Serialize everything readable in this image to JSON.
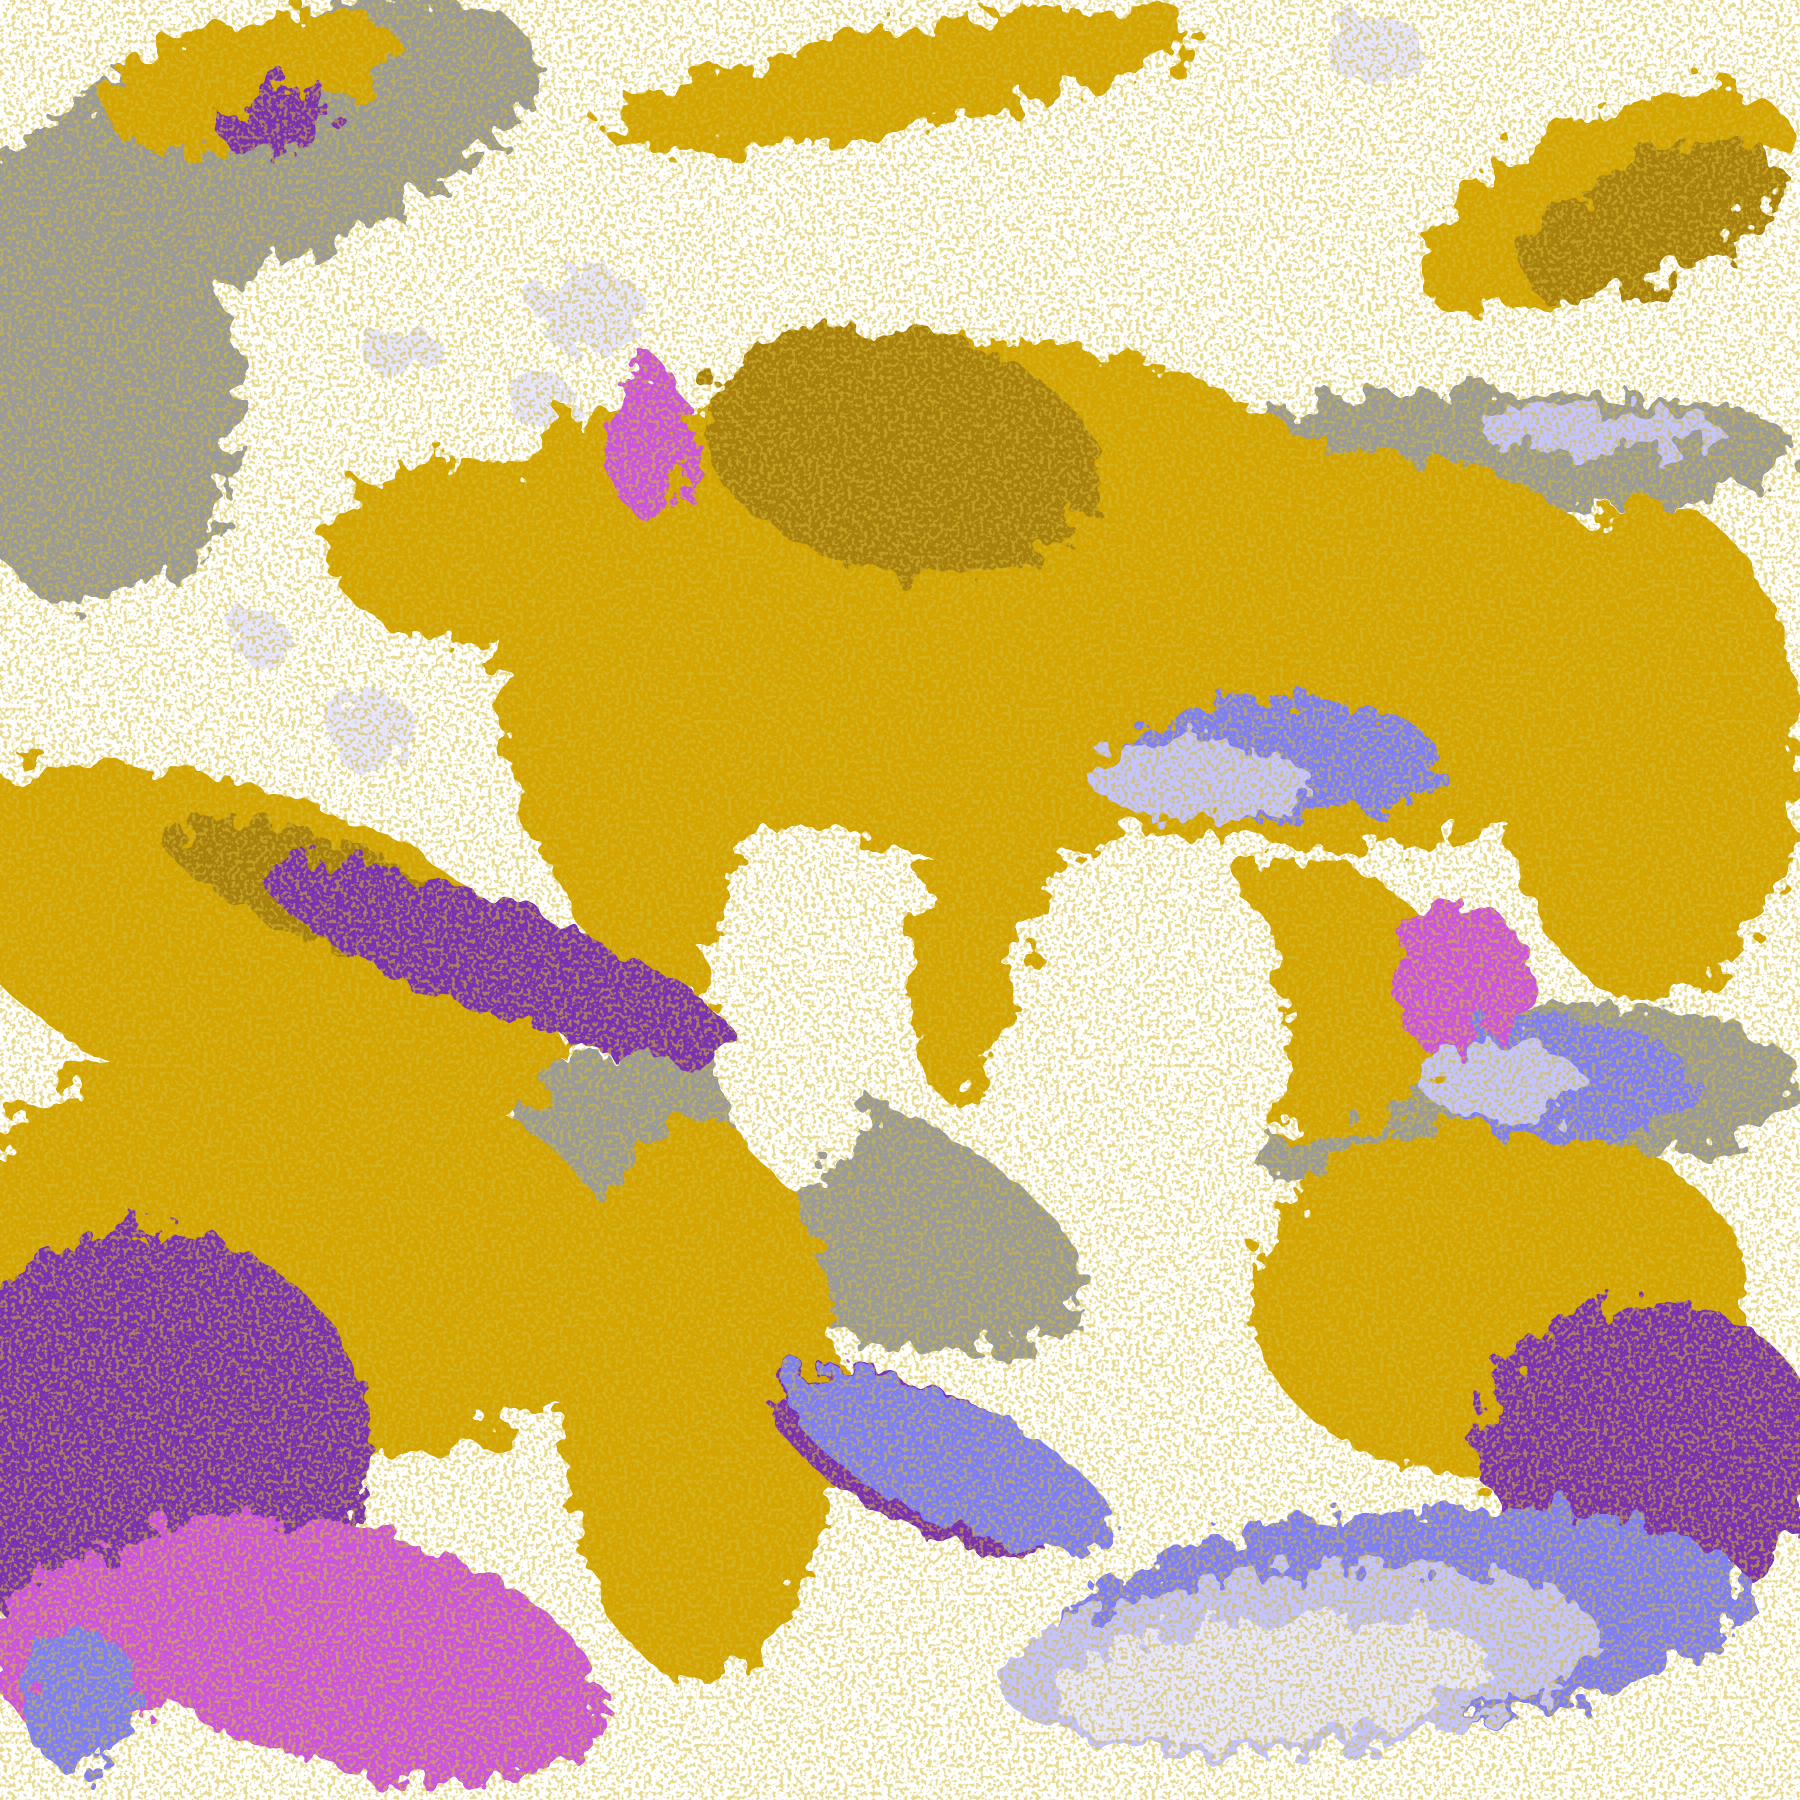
{
  "map": {
    "type": "false-color satellite cloud imagery",
    "palette": {
      "clear": "#ffffff",
      "gold": "#d4a500",
      "dark_gold": "#a8800a",
      "gray": "#9a9a9a",
      "lavender": "#e6e6ff",
      "periwinkle": "#7f7ff5",
      "light_blue": "#c4c4ff",
      "purple": "#7a30b0",
      "magenta": "#cc55dd"
    }
  }
}
